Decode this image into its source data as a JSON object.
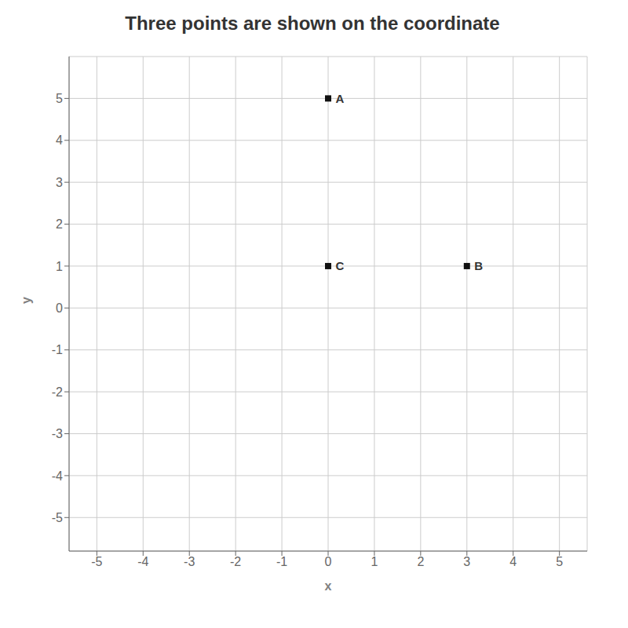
{
  "chart_data": {
    "type": "scatter",
    "title": "Three points are shown on the coordinate",
    "x_label": "x",
    "y_label": "y",
    "x": [
      0,
      3,
      0
    ],
    "values": [
      5,
      1,
      1
    ],
    "point_labels": [
      "A",
      "B",
      "C"
    ],
    "color": "#111111",
    "marker": "square",
    "xlim": [
      -5.6,
      5.6
    ],
    "ylim": [
      -5.8,
      6.0
    ],
    "xticks": [
      -5,
      -4,
      -3,
      -2,
      -1,
      0,
      1,
      2,
      3,
      4,
      5
    ],
    "yticks": [
      -5,
      -4,
      -3,
      -2,
      -1,
      0,
      1,
      2,
      3,
      4,
      5
    ],
    "grid": true
  }
}
